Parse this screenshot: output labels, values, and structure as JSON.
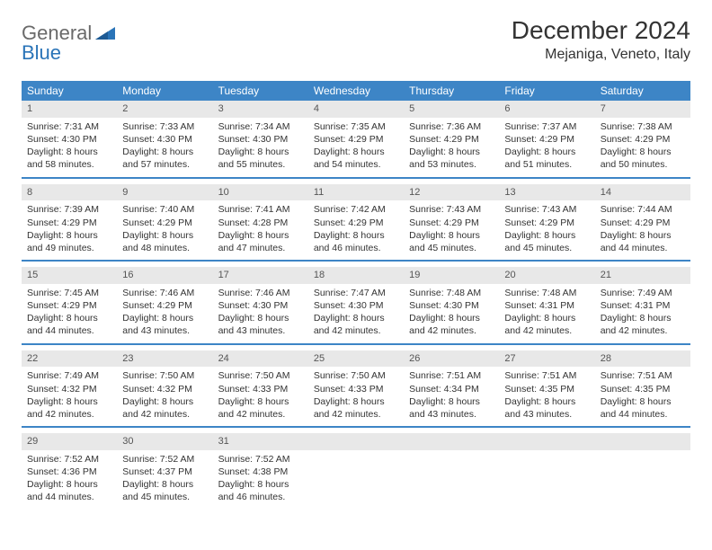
{
  "logo": {
    "word1": "General",
    "word2": "Blue",
    "color1": "#6a6a6a",
    "color2": "#2a74b8"
  },
  "header": {
    "title": "December 2024",
    "location": "Mejaniga, Veneto, Italy"
  },
  "colors": {
    "header_bg": "#3d85c6",
    "header_text": "#ffffff",
    "daynum_bg": "#e8e8e8",
    "text": "#333333",
    "rule": "#3d85c6"
  },
  "day_names": [
    "Sunday",
    "Monday",
    "Tuesday",
    "Wednesday",
    "Thursday",
    "Friday",
    "Saturday"
  ],
  "weeks": [
    [
      {
        "num": "1",
        "sunrise": "Sunrise: 7:31 AM",
        "sunset": "Sunset: 4:30 PM",
        "daylight": "Daylight: 8 hours and 58 minutes."
      },
      {
        "num": "2",
        "sunrise": "Sunrise: 7:33 AM",
        "sunset": "Sunset: 4:30 PM",
        "daylight": "Daylight: 8 hours and 57 minutes."
      },
      {
        "num": "3",
        "sunrise": "Sunrise: 7:34 AM",
        "sunset": "Sunset: 4:30 PM",
        "daylight": "Daylight: 8 hours and 55 minutes."
      },
      {
        "num": "4",
        "sunrise": "Sunrise: 7:35 AM",
        "sunset": "Sunset: 4:29 PM",
        "daylight": "Daylight: 8 hours and 54 minutes."
      },
      {
        "num": "5",
        "sunrise": "Sunrise: 7:36 AM",
        "sunset": "Sunset: 4:29 PM",
        "daylight": "Daylight: 8 hours and 53 minutes."
      },
      {
        "num": "6",
        "sunrise": "Sunrise: 7:37 AM",
        "sunset": "Sunset: 4:29 PM",
        "daylight": "Daylight: 8 hours and 51 minutes."
      },
      {
        "num": "7",
        "sunrise": "Sunrise: 7:38 AM",
        "sunset": "Sunset: 4:29 PM",
        "daylight": "Daylight: 8 hours and 50 minutes."
      }
    ],
    [
      {
        "num": "8",
        "sunrise": "Sunrise: 7:39 AM",
        "sunset": "Sunset: 4:29 PM",
        "daylight": "Daylight: 8 hours and 49 minutes."
      },
      {
        "num": "9",
        "sunrise": "Sunrise: 7:40 AM",
        "sunset": "Sunset: 4:29 PM",
        "daylight": "Daylight: 8 hours and 48 minutes."
      },
      {
        "num": "10",
        "sunrise": "Sunrise: 7:41 AM",
        "sunset": "Sunset: 4:28 PM",
        "daylight": "Daylight: 8 hours and 47 minutes."
      },
      {
        "num": "11",
        "sunrise": "Sunrise: 7:42 AM",
        "sunset": "Sunset: 4:29 PM",
        "daylight": "Daylight: 8 hours and 46 minutes."
      },
      {
        "num": "12",
        "sunrise": "Sunrise: 7:43 AM",
        "sunset": "Sunset: 4:29 PM",
        "daylight": "Daylight: 8 hours and 45 minutes."
      },
      {
        "num": "13",
        "sunrise": "Sunrise: 7:43 AM",
        "sunset": "Sunset: 4:29 PM",
        "daylight": "Daylight: 8 hours and 45 minutes."
      },
      {
        "num": "14",
        "sunrise": "Sunrise: 7:44 AM",
        "sunset": "Sunset: 4:29 PM",
        "daylight": "Daylight: 8 hours and 44 minutes."
      }
    ],
    [
      {
        "num": "15",
        "sunrise": "Sunrise: 7:45 AM",
        "sunset": "Sunset: 4:29 PM",
        "daylight": "Daylight: 8 hours and 44 minutes."
      },
      {
        "num": "16",
        "sunrise": "Sunrise: 7:46 AM",
        "sunset": "Sunset: 4:29 PM",
        "daylight": "Daylight: 8 hours and 43 minutes."
      },
      {
        "num": "17",
        "sunrise": "Sunrise: 7:46 AM",
        "sunset": "Sunset: 4:30 PM",
        "daylight": "Daylight: 8 hours and 43 minutes."
      },
      {
        "num": "18",
        "sunrise": "Sunrise: 7:47 AM",
        "sunset": "Sunset: 4:30 PM",
        "daylight": "Daylight: 8 hours and 42 minutes."
      },
      {
        "num": "19",
        "sunrise": "Sunrise: 7:48 AM",
        "sunset": "Sunset: 4:30 PM",
        "daylight": "Daylight: 8 hours and 42 minutes."
      },
      {
        "num": "20",
        "sunrise": "Sunrise: 7:48 AM",
        "sunset": "Sunset: 4:31 PM",
        "daylight": "Daylight: 8 hours and 42 minutes."
      },
      {
        "num": "21",
        "sunrise": "Sunrise: 7:49 AM",
        "sunset": "Sunset: 4:31 PM",
        "daylight": "Daylight: 8 hours and 42 minutes."
      }
    ],
    [
      {
        "num": "22",
        "sunrise": "Sunrise: 7:49 AM",
        "sunset": "Sunset: 4:32 PM",
        "daylight": "Daylight: 8 hours and 42 minutes."
      },
      {
        "num": "23",
        "sunrise": "Sunrise: 7:50 AM",
        "sunset": "Sunset: 4:32 PM",
        "daylight": "Daylight: 8 hours and 42 minutes."
      },
      {
        "num": "24",
        "sunrise": "Sunrise: 7:50 AM",
        "sunset": "Sunset: 4:33 PM",
        "daylight": "Daylight: 8 hours and 42 minutes."
      },
      {
        "num": "25",
        "sunrise": "Sunrise: 7:50 AM",
        "sunset": "Sunset: 4:33 PM",
        "daylight": "Daylight: 8 hours and 42 minutes."
      },
      {
        "num": "26",
        "sunrise": "Sunrise: 7:51 AM",
        "sunset": "Sunset: 4:34 PM",
        "daylight": "Daylight: 8 hours and 43 minutes."
      },
      {
        "num": "27",
        "sunrise": "Sunrise: 7:51 AM",
        "sunset": "Sunset: 4:35 PM",
        "daylight": "Daylight: 8 hours and 43 minutes."
      },
      {
        "num": "28",
        "sunrise": "Sunrise: 7:51 AM",
        "sunset": "Sunset: 4:35 PM",
        "daylight": "Daylight: 8 hours and 44 minutes."
      }
    ],
    [
      {
        "num": "29",
        "sunrise": "Sunrise: 7:52 AM",
        "sunset": "Sunset: 4:36 PM",
        "daylight": "Daylight: 8 hours and 44 minutes."
      },
      {
        "num": "30",
        "sunrise": "Sunrise: 7:52 AM",
        "sunset": "Sunset: 4:37 PM",
        "daylight": "Daylight: 8 hours and 45 minutes."
      },
      {
        "num": "31",
        "sunrise": "Sunrise: 7:52 AM",
        "sunset": "Sunset: 4:38 PM",
        "daylight": "Daylight: 8 hours and 46 minutes."
      },
      {
        "empty": true
      },
      {
        "empty": true
      },
      {
        "empty": true
      },
      {
        "empty": true
      }
    ]
  ]
}
